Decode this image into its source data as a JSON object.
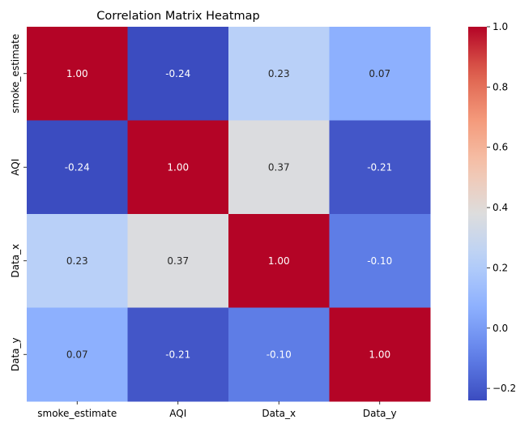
{
  "chart_data": {
    "type": "heatmap",
    "title": "Correlation Matrix Heatmap",
    "x_labels": [
      "smoke_estimate",
      "AQI",
      "Data_x",
      "Data_y"
    ],
    "y_labels": [
      "smoke_estimate",
      "AQI",
      "Data_x",
      "Data_y"
    ],
    "values": [
      [
        1.0,
        -0.24,
        0.23,
        0.07
      ],
      [
        -0.24,
        1.0,
        0.37,
        -0.21
      ],
      [
        0.23,
        0.37,
        1.0,
        -0.1
      ],
      [
        0.07,
        -0.21,
        -0.1,
        1.0
      ]
    ],
    "cell_labels": [
      [
        "1.00",
        "-0.24",
        "0.23",
        "0.07"
      ],
      [
        "-0.24",
        "1.00",
        "0.37",
        "-0.21"
      ],
      [
        "0.23",
        "0.37",
        "1.00",
        "-0.10"
      ],
      [
        "0.07",
        "-0.21",
        "-0.10",
        "1.00"
      ]
    ],
    "colormap": "coolwarm",
    "vmin": -0.24,
    "vmax": 1.0,
    "colorbar_ticks": [
      -0.2,
      0.0,
      0.2,
      0.4,
      0.6,
      0.8,
      1.0
    ],
    "colorbar_tick_labels": [
      "−0.2",
      "0.0",
      "0.2",
      "0.4",
      "0.6",
      "0.8",
      "1.0"
    ],
    "annotated": true,
    "grid": false
  }
}
